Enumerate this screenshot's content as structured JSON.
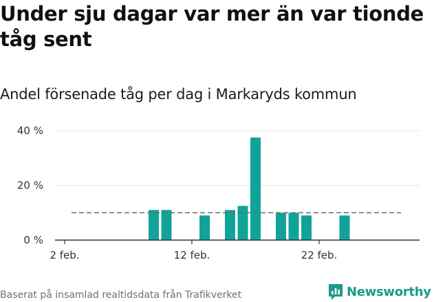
{
  "title": "Under sju dagar var mer än var tionde tåg sent",
  "subtitle": "Andel försenade tåg per dag i Markaryds kommun",
  "source": "Baserat på insamlad realtidsdata från Trafikverket",
  "logo_text": "Newsworthy",
  "colors": {
    "bar": "#11a399",
    "reference_line": "#6b6b6b",
    "grid": "#e6e6e6",
    "brand": "#199b8c"
  },
  "chart_data": {
    "type": "bar",
    "x_unit": "day of February",
    "x": [
      9,
      10,
      13,
      15,
      16,
      17,
      19,
      20,
      21,
      24
    ],
    "values": [
      11,
      11,
      9,
      11,
      12.5,
      37.5,
      10,
      10,
      9,
      9
    ],
    "value_unit": "%",
    "reference_line": {
      "value": 10,
      "style": "dashed"
    },
    "xlim": [
      2,
      29
    ],
    "ylim": [
      0,
      40
    ],
    "x_ticks": [
      {
        "day": 2,
        "label": "2 feb."
      },
      {
        "day": 12,
        "label": "12 feb."
      },
      {
        "day": 22,
        "label": "22 feb."
      }
    ],
    "y_ticks": [
      {
        "value": 0,
        "label": "0 %"
      },
      {
        "value": 20,
        "label": "20 %"
      },
      {
        "value": 40,
        "label": "40 %"
      }
    ],
    "grid": true
  }
}
